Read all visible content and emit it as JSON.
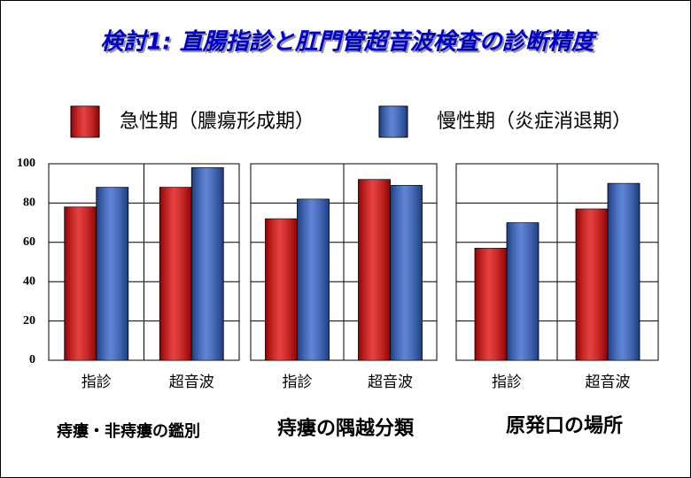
{
  "chart_data": {
    "type": "bar",
    "title": "検討1: 直腸指診と肛門管超音波検査の診断精度",
    "categories": [
      "指診",
      "超音波",
      "指診",
      "超音波",
      "指診",
      "超音波"
    ],
    "group_labels": [
      "痔瘻・非痔瘻の鑑別",
      "痔瘻の隅越分類",
      "原発口の場所"
    ],
    "series": [
      {
        "name": "急性期（膿瘍形成期）",
        "color": "#e00000",
        "values": [
          78,
          88,
          72,
          92,
          57,
          77
        ]
      },
      {
        "name": "慢性期（炎症消退期）",
        "color": "#2a5cc8",
        "values": [
          88,
          98,
          82,
          89,
          70,
          90
        ]
      }
    ],
    "ylim": [
      0,
      100
    ],
    "yticks": [
      0,
      20,
      40,
      60,
      80,
      100
    ],
    "grid": true
  }
}
